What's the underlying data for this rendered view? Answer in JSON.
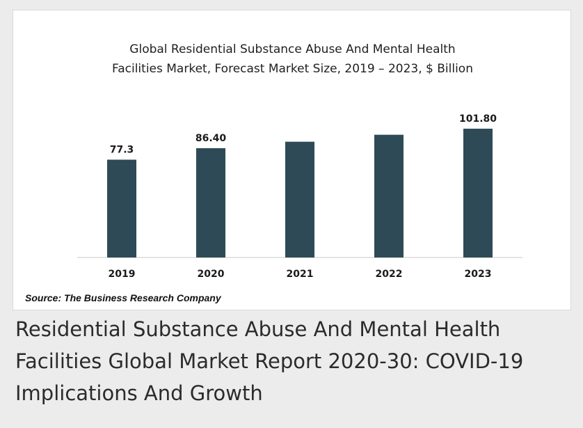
{
  "chart_data": {
    "type": "bar",
    "title_line1": "Global Residential Substance Abuse And Mental Health",
    "title_line2": "Facilities Market, Forecast Market Size, 2019 – 2023, $ Billion",
    "categories": [
      "2019",
      "2020",
      "2021",
      "2022",
      "2023"
    ],
    "values": [
      77.3,
      86.4,
      91.5,
      97.0,
      101.8
    ],
    "data_labels": [
      "77.3",
      "86.40",
      "",
      "",
      "101.80"
    ],
    "xlabel": "",
    "ylabel": "",
    "ylim": [
      0,
      110
    ],
    "grid": false,
    "bar_color": "#2e4a56"
  },
  "source": "Source: The Business Research Company",
  "caption": "Residential Substance Abuse And Mental Health Facilities Global Market Report 2020-30: COVID-19 Implications And Growth"
}
